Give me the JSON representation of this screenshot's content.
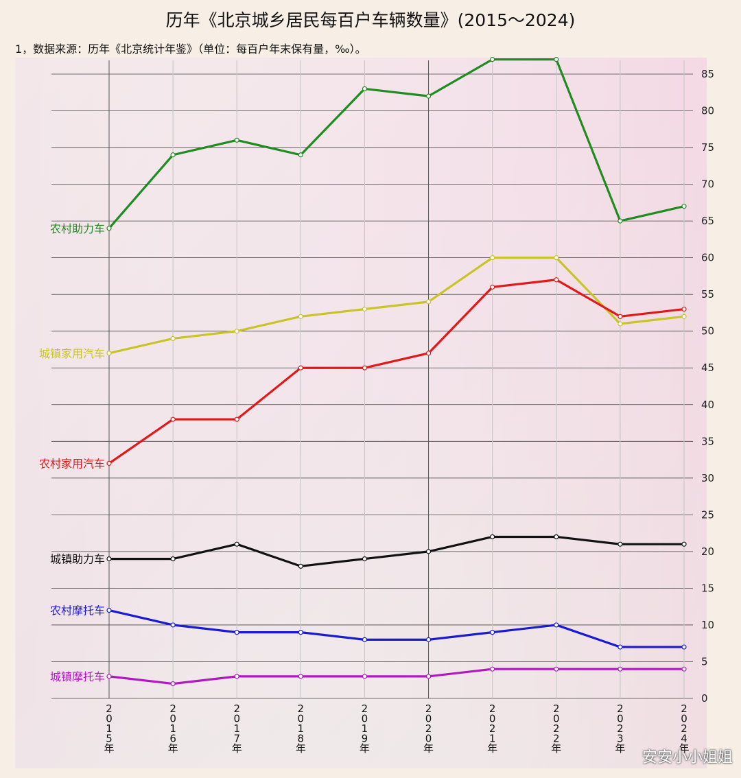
{
  "title": "历年《北京城乡居民每百户车辆数量》(2015～2024)",
  "subtitle": "1，数据来源：历年《北京统计年鉴》（单位：每百户年末保有量，‰）。",
  "watermark": "安安小小姐姐",
  "chart_data": {
    "type": "line",
    "categories": [
      "2015年",
      "2016年",
      "2017年",
      "2018年",
      "2019年",
      "2020年",
      "2021年",
      "2022年",
      "2023年",
      "2024年"
    ],
    "ylim": [
      0,
      85
    ],
    "yticks": [
      0,
      5,
      10,
      15,
      20,
      25,
      30,
      35,
      40,
      45,
      50,
      55,
      60,
      65,
      70,
      75,
      80,
      85
    ],
    "grid": true,
    "series": [
      {
        "name": "农村助力车",
        "color": "#1e8c1e",
        "values": [
          64,
          74,
          76,
          74,
          83,
          82,
          87,
          87,
          65,
          67
        ]
      },
      {
        "name": "城镇家用汽车",
        "color": "#c8c428",
        "values": [
          47,
          49,
          50,
          52,
          53,
          54,
          60,
          60,
          51,
          52
        ]
      },
      {
        "name": "农村家用汽车",
        "color": "#e01818",
        "values": [
          32,
          38,
          38,
          45,
          45,
          47,
          56,
          57,
          52,
          53
        ]
      },
      {
        "name": "城镇助力车",
        "color": "#111111",
        "values": [
          19,
          19,
          21,
          18,
          19,
          20,
          22,
          22,
          21,
          21
        ]
      },
      {
        "name": "农村摩托车",
        "color": "#1a1ad0",
        "values": [
          12,
          10,
          9,
          9,
          8,
          8,
          9,
          10,
          7,
          7
        ]
      },
      {
        "name": "城镇摩托车",
        "color": "#b018c0",
        "values": [
          3,
          2,
          3,
          3,
          3,
          3,
          4,
          4,
          4,
          4
        ]
      }
    ]
  }
}
